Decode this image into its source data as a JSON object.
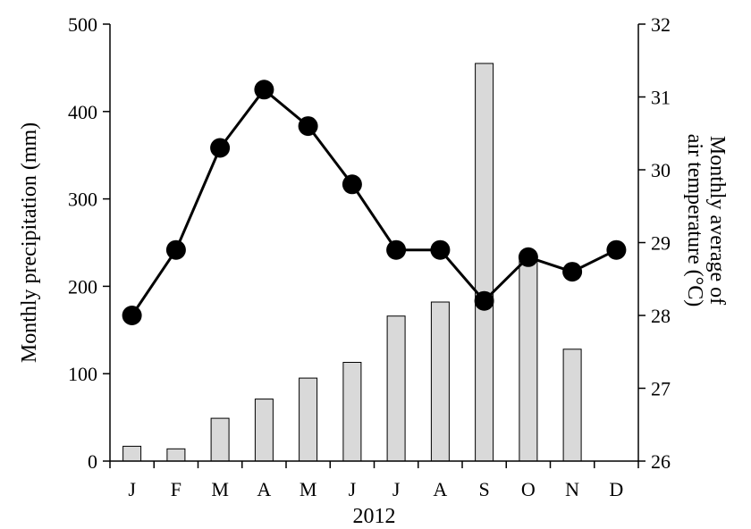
{
  "chart_data": {
    "type": "bar+line",
    "categories": [
      "J",
      "F",
      "M",
      "A",
      "M",
      "J",
      "J",
      "A",
      "S",
      "O",
      "N",
      "D"
    ],
    "xlabel": "2012",
    "series": [
      {
        "type": "bar",
        "axis": "left",
        "color": "#d9d9d9",
        "values": [
          17,
          14,
          49,
          71,
          95,
          113,
          166,
          182,
          455,
          235,
          128,
          0
        ]
      },
      {
        "type": "line",
        "axis": "right",
        "color": "#000000",
        "values": [
          28.0,
          28.9,
          30.3,
          31.1,
          30.6,
          29.8,
          28.9,
          28.9,
          28.2,
          28.8,
          28.6,
          28.9
        ]
      }
    ],
    "left_axis": {
      "label": "Monthly precipitation (mm)",
      "ylim": [
        0,
        500
      ],
      "ticks": [
        0,
        100,
        200,
        300,
        400,
        500
      ]
    },
    "right_axis": {
      "label_lines": [
        "Monthly average of",
        "air temperature (°C)"
      ],
      "ylim": [
        26,
        32
      ],
      "ticks": [
        26,
        27,
        28,
        29,
        30,
        31,
        32
      ]
    },
    "grid": false,
    "legend": "none"
  }
}
